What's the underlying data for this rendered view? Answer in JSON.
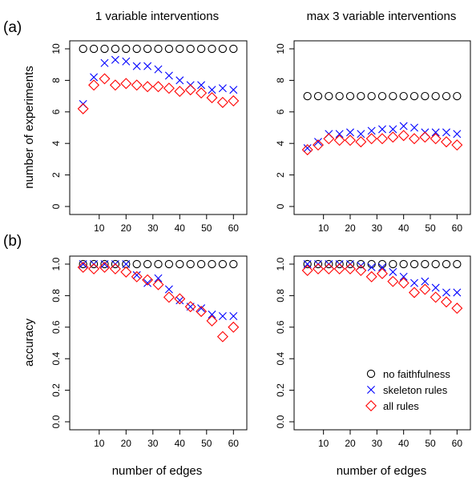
{
  "figure": {
    "col_titles": [
      "1 variable interventions",
      "max 3 variable interventions"
    ],
    "row_labels": [
      "(a)",
      "(b)"
    ],
    "ylabels": [
      "number of experiments",
      "accuracy"
    ],
    "xlabel": "number of edges",
    "legend": [
      "no faithfulness",
      "skeleton rules",
      "all rules"
    ],
    "legend_position": "bottom-right of lower-right panel"
  },
  "series_style": {
    "no faithfulness": {
      "marker": "circle",
      "color": "#000000"
    },
    "skeleton rules": {
      "marker": "cross",
      "color": "#0000ff"
    },
    "all rules": {
      "marker": "diamond",
      "color": "#ff0000"
    }
  },
  "chart_data": [
    {
      "type": "scatter",
      "title": "1 variable interventions",
      "xlabel": "",
      "ylabel": "number of experiments",
      "xlim": [
        2,
        62
      ],
      "ylim": [
        0,
        10
      ],
      "xticks": [
        10,
        20,
        30,
        40,
        50,
        60
      ],
      "yticks": [
        0,
        2,
        4,
        6,
        8,
        10
      ],
      "x": [
        4,
        8,
        12,
        16,
        20,
        24,
        28,
        32,
        36,
        40,
        44,
        48,
        52,
        56,
        60
      ],
      "series": [
        {
          "name": "no faithfulness",
          "values": [
            10,
            10,
            10,
            10,
            10,
            10,
            10,
            10,
            10,
            10,
            10,
            10,
            10,
            10,
            10
          ]
        },
        {
          "name": "skeleton rules",
          "values": [
            6.5,
            8.2,
            9.1,
            9.3,
            9.2,
            8.9,
            8.9,
            8.7,
            8.3,
            8.0,
            7.7,
            7.7,
            7.4,
            7.5,
            7.4
          ]
        },
        {
          "name": "all rules",
          "values": [
            6.2,
            7.7,
            8.1,
            7.7,
            7.8,
            7.7,
            7.6,
            7.6,
            7.5,
            7.3,
            7.4,
            7.2,
            6.9,
            6.6,
            6.7
          ]
        }
      ]
    },
    {
      "type": "scatter",
      "title": "max 3 variable interventions",
      "xlabel": "",
      "ylabel": "",
      "xlim": [
        2,
        62
      ],
      "ylim": [
        0,
        10
      ],
      "xticks": [
        10,
        20,
        30,
        40,
        50,
        60
      ],
      "yticks": [
        0,
        2,
        4,
        6,
        8,
        10
      ],
      "x": [
        4,
        8,
        12,
        16,
        20,
        24,
        28,
        32,
        36,
        40,
        44,
        48,
        52,
        56,
        60
      ],
      "series": [
        {
          "name": "no faithfulness",
          "values": [
            7,
            7,
            7,
            7,
            7,
            7,
            7,
            7,
            7,
            7,
            7,
            7,
            7,
            7,
            7
          ]
        },
        {
          "name": "skeleton rules",
          "values": [
            3.7,
            4.1,
            4.6,
            4.6,
            4.7,
            4.6,
            4.8,
            4.9,
            4.9,
            5.1,
            5.0,
            4.7,
            4.7,
            4.7,
            4.6
          ]
        },
        {
          "name": "all rules",
          "values": [
            3.6,
            3.9,
            4.3,
            4.2,
            4.2,
            4.1,
            4.3,
            4.3,
            4.4,
            4.5,
            4.3,
            4.4,
            4.3,
            4.1,
            3.9
          ]
        }
      ]
    },
    {
      "type": "scatter",
      "title": "",
      "xlabel": "number of edges",
      "ylabel": "accuracy",
      "xlim": [
        2,
        62
      ],
      "ylim": [
        0,
        1
      ],
      "xticks": [
        10,
        20,
        30,
        40,
        50,
        60
      ],
      "yticks": [
        0.0,
        0.2,
        0.4,
        0.6,
        0.8,
        1.0
      ],
      "x": [
        4,
        8,
        12,
        16,
        20,
        24,
        28,
        32,
        36,
        40,
        44,
        48,
        52,
        56,
        60
      ],
      "series": [
        {
          "name": "no faithfulness",
          "values": [
            1,
            1,
            1,
            1,
            1,
            1,
            1,
            1,
            1,
            1,
            1,
            1,
            1,
            1,
            1
          ]
        },
        {
          "name": "skeleton rules",
          "values": [
            1.0,
            1.0,
            1.0,
            1.0,
            1.0,
            0.93,
            0.88,
            0.91,
            0.84,
            0.77,
            0.73,
            0.72,
            0.68,
            0.67,
            0.67
          ]
        },
        {
          "name": "all rules",
          "values": [
            0.98,
            0.97,
            0.98,
            0.97,
            0.95,
            0.92,
            0.9,
            0.87,
            0.79,
            0.78,
            0.73,
            0.7,
            0.64,
            0.54,
            0.6
          ]
        }
      ]
    },
    {
      "type": "scatter",
      "title": "",
      "xlabel": "number of edges",
      "ylabel": "",
      "xlim": [
        2,
        62
      ],
      "ylim": [
        0,
        1
      ],
      "xticks": [
        10,
        20,
        30,
        40,
        50,
        60
      ],
      "yticks": [
        0.0,
        0.2,
        0.4,
        0.6,
        0.8,
        1.0
      ],
      "x": [
        4,
        8,
        12,
        16,
        20,
        24,
        28,
        32,
        36,
        40,
        44,
        48,
        52,
        56,
        60
      ],
      "legend": [
        "no faithfulness",
        "skeleton rules",
        "all rules"
      ],
      "series": [
        {
          "name": "no faithfulness",
          "values": [
            1,
            1,
            1,
            1,
            1,
            1,
            1,
            1,
            1,
            1,
            1,
            1,
            1,
            1,
            1
          ]
        },
        {
          "name": "skeleton rules",
          "values": [
            1.0,
            1.0,
            1.0,
            1.0,
            1.0,
            0.99,
            0.98,
            0.98,
            0.95,
            0.92,
            0.88,
            0.89,
            0.85,
            0.82,
            0.82
          ]
        },
        {
          "name": "all rules",
          "values": [
            0.96,
            0.97,
            0.97,
            0.97,
            0.97,
            0.96,
            0.92,
            0.94,
            0.89,
            0.88,
            0.82,
            0.84,
            0.79,
            0.76,
            0.72
          ]
        }
      ]
    }
  ]
}
